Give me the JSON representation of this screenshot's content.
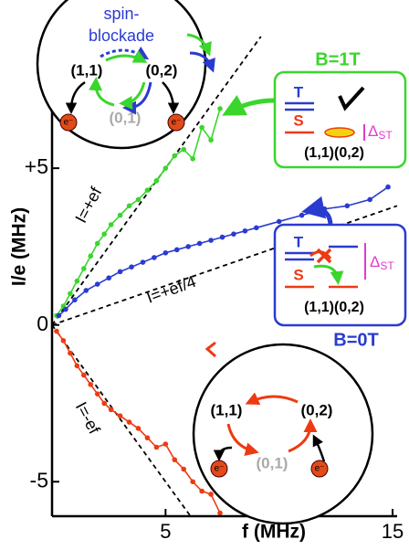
{
  "chart_data": {
    "type": "line",
    "xlabel": "f (MHz)",
    "ylabel": "I/e (MHz)",
    "xlim": [
      0,
      15.2
    ],
    "ylim": [
      -6.1,
      9.2
    ],
    "xticks": [
      5,
      15
    ],
    "yticks": [
      {
        "value": 5,
        "label": "+5"
      },
      0,
      -5
    ],
    "series": [
      {
        "name": "B=1T",
        "color": "#3ad62c",
        "x": [
          0.2,
          0.5,
          0.8,
          1.1,
          1.4,
          1.7,
          2.0,
          2.3,
          2.6,
          3.0,
          3.4,
          3.8,
          4.2,
          4.6,
          5.0,
          5.4,
          5.8,
          6.2,
          6.6,
          7.0,
          7.4
        ],
        "values": [
          0.3,
          0.6,
          1.0,
          1.4,
          1.8,
          2.2,
          2.6,
          2.9,
          3.2,
          3.5,
          3.8,
          4.0,
          4.3,
          4.6,
          5.0,
          5.4,
          5.6,
          5.3,
          6.3,
          5.9,
          6.9
        ]
      },
      {
        "name": "B=0T",
        "color": "#2a3bd0",
        "x": [
          0.3,
          0.6,
          1.0,
          1.5,
          2.0,
          2.5,
          3.0,
          3.5,
          4.0,
          4.5,
          5.0,
          5.5,
          6.0,
          6.5,
          7.0,
          7.5,
          8.0,
          8.5,
          9.0,
          10.0,
          11.0,
          12.0,
          13.0,
          14.0,
          14.8
        ],
        "values": [
          0.3,
          0.5,
          0.8,
          1.1,
          1.3,
          1.5,
          1.7,
          1.85,
          2.0,
          2.15,
          2.3,
          2.4,
          2.5,
          2.6,
          2.7,
          2.8,
          2.9,
          3.0,
          3.1,
          3.3,
          3.5,
          3.7,
          3.8,
          4.0,
          4.4
        ]
      },
      {
        "color": "#ee3a12",
        "x": [
          0.2,
          0.5,
          0.8,
          1.1,
          1.4,
          1.7,
          2.0,
          2.3,
          2.6,
          3.0,
          3.4,
          3.8,
          4.2,
          4.6,
          5.0,
          5.4,
          5.8,
          6.2,
          6.6,
          7.0,
          7.4
        ],
        "values": [
          -0.2,
          -0.5,
          -0.9,
          -1.3,
          -1.6,
          -1.9,
          -2.2,
          -2.5,
          -2.7,
          -2.9,
          -3.1,
          -3.3,
          -3.6,
          -3.9,
          -3.8,
          -4.3,
          -4.6,
          -5.0,
          -5.3,
          -5.4,
          -6.0
        ]
      }
    ],
    "ref_lines": [
      {
        "label": "I=+ef",
        "slope": 1
      },
      {
        "label": "I=+ef/4",
        "slope": 0.25
      },
      {
        "label": "I=-ef",
        "slope": -1
      }
    ],
    "inset_top": {
      "spin1": "spin-",
      "spin2": "blockade",
      "left": "(1,1)",
      "right": "(0,2)",
      "middle": "(0,1)",
      "electron": "e⁻"
    },
    "box_1T": {
      "T": "T",
      "S": "S",
      "states": "(1,1)(0,2)",
      "delta": "Δ",
      "delta_sub": "ST"
    },
    "box_0T": {
      "T": "T",
      "S": "S",
      "states": "(1,1)(0,2)",
      "delta": "Δ",
      "delta_sub": "ST"
    },
    "inset_bottom": {
      "left": "(1,1)",
      "right": "(0,2)",
      "middle": "(0,1)",
      "electron": "e⁻"
    }
  }
}
